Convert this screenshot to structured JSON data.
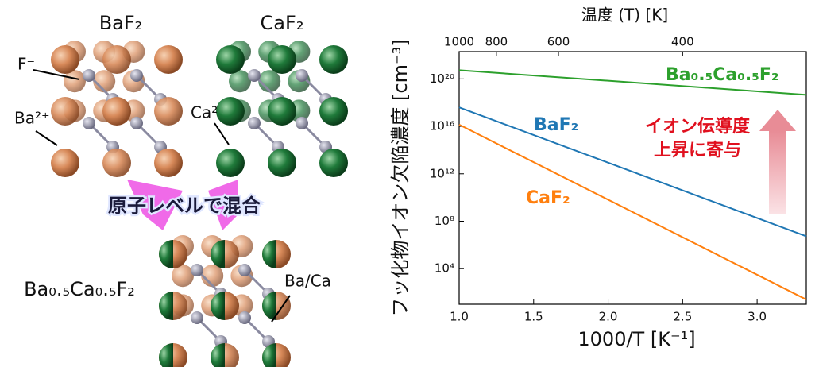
{
  "diagram": {
    "baf2_title": "BaF₂",
    "caf2_title": "CaF₂",
    "f_ion": "F⁻",
    "ba_ion": "Ba²⁺",
    "ca_ion": "Ca²⁺",
    "mixing": "原子レベルで混合",
    "mixed_title": "Ba₀.₅Ca₀.₅F₂",
    "site": "Ba/Ca"
  },
  "chart_data": {
    "type": "line",
    "xlabel": "1000/T [K⁻¹]",
    "ylabel": "フッ化物イオン欠陥濃度 [cm⁻³]",
    "x2label": "温度 (T) [K]",
    "xlim": [
      1.0,
      3.33
    ],
    "xticks": [
      {
        "value": 1,
        "label": "1.0"
      },
      1.5,
      {
        "value": 2,
        "label": "2.0"
      },
      2.5,
      {
        "value": 3,
        "label": "3.0"
      }
    ],
    "x2ticks": [
      1000,
      800,
      600,
      400
    ],
    "ylog": true,
    "ylim": [
      10,
      2e+22
    ],
    "yticks": [
      {
        "value": 10000.0,
        "label": "10⁴"
      },
      {
        "value": 100000000.0,
        "label": "10⁸"
      },
      {
        "value": 1000000000000.0,
        "label": "10¹²"
      },
      {
        "value": 1e+16,
        "label": "10¹⁶"
      },
      {
        "value": 1e+20,
        "label": "10²⁰"
      }
    ],
    "series": [
      {
        "name": "Ba₀.₅Ca₀.₅F₂",
        "color": "#2ca02c",
        "x": [
          1.0,
          3.33
        ],
        "values": [
          5.4e+20,
          4.6e+18
        ]
      },
      {
        "name": "BaF₂",
        "color": "#1f77b4",
        "x": [
          1.0,
          3.33
        ],
        "values": [
          4e+17,
          5400000.0
        ]
      },
      {
        "name": "CaF₂",
        "color": "#ff7f0e",
        "x": [
          1.0,
          3.33
        ],
        "values": [
          1.4e+16,
          25
        ]
      }
    ],
    "annotation": [
      "イオン伝導度",
      "上昇に寄与"
    ]
  }
}
